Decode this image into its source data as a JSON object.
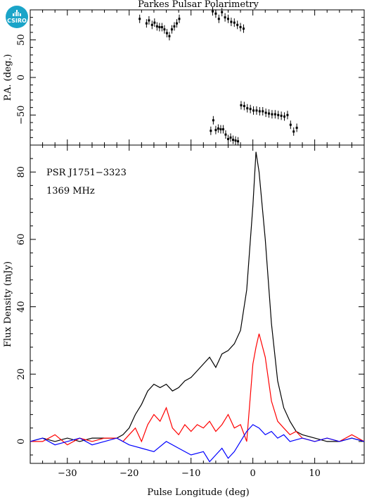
{
  "logo": {
    "text": "CSIRO"
  },
  "chart_data": [
    {
      "type": "scatter",
      "title": "Parkes Pulsar Polarimetry",
      "ylabel": "P.A. (deg.)",
      "xlim": [
        -36,
        18
      ],
      "ylim": [
        -90,
        90
      ],
      "yticks": [
        -50,
        0,
        50
      ],
      "series": [
        {
          "x": [
            -18.3,
            -17.2,
            -16.8,
            -16.3,
            -15.9,
            -15.5,
            -15.1,
            -14.7,
            -14.3,
            -13.9,
            -13.5,
            -13.1,
            -12.7,
            -12.3,
            -11.9,
            -6.5,
            -6.0,
            -5.5,
            -5.0,
            -4.5,
            -4.0,
            -3.5,
            -3.0,
            -2.5,
            -2.0,
            -1.5,
            -6.8,
            -6.4,
            -6.0,
            -5.6,
            -5.2,
            -4.8,
            -4.4,
            -4.0,
            -3.6,
            -3.2,
            -2.8,
            -2.4,
            -1.9,
            -1.4,
            -0.9,
            -0.4,
            0.1,
            0.6,
            1.1,
            1.6,
            2.1,
            2.6,
            3.1,
            3.6,
            4.1,
            4.6,
            5.1,
            5.6,
            6.1,
            6.6,
            7.1
          ],
          "y": [
            78,
            72,
            76,
            70,
            73,
            68,
            67,
            67,
            64,
            59,
            55,
            64,
            68,
            72,
            78,
            88,
            85,
            78,
            87,
            80,
            78,
            74,
            73,
            70,
            67,
            65,
            -71,
            -57,
            -70,
            -68,
            -69,
            -69,
            -76,
            -82,
            -80,
            -83,
            -84,
            -85,
            -37,
            -38,
            -41,
            -42,
            -44,
            -44,
            -45,
            -45,
            -47,
            -48,
            -49,
            -49,
            -50,
            -51,
            -52,
            -50,
            -63,
            -72,
            -67
          ]
        }
      ]
    },
    {
      "type": "line",
      "xlabel": "Pulse Longitude (deg)",
      "ylabel": "Flux Density (mJy)",
      "xlim": [
        -36,
        18
      ],
      "ylim": [
        -6.5,
        88
      ],
      "xticks": [
        -30,
        -20,
        -10,
        0,
        10
      ],
      "yticks": [
        0,
        20,
        40,
        60,
        80
      ],
      "annotations": [
        "PSR J1751−3323",
        "1369 MHz"
      ],
      "series": [
        {
          "color": "#000000",
          "x": [
            -36,
            -34,
            -32,
            -30,
            -28,
            -26,
            -24,
            -22,
            -21,
            -20,
            -19,
            -18,
            -17,
            -16,
            -15,
            -14,
            -13,
            -12,
            -11,
            -10,
            -9,
            -8,
            -7,
            -6,
            -5,
            -4,
            -3,
            -2,
            -1,
            0,
            0.5,
            1,
            2,
            3,
            4,
            5,
            6,
            7,
            8,
            10,
            12,
            14,
            16,
            18
          ],
          "y": [
            0,
            1,
            0,
            1,
            0,
            1,
            1,
            1,
            2,
            4,
            8,
            11,
            15,
            17,
            16,
            17,
            15,
            16,
            18,
            19,
            21,
            23,
            25,
            22,
            26,
            27,
            29,
            33,
            45,
            70,
            86,
            80,
            60,
            35,
            18,
            10,
            6,
            3,
            2,
            1,
            0,
            0,
            1,
            0
          ]
        },
        {
          "color": "#ff0000",
          "x": [
            -36,
            -34,
            -32,
            -30,
            -28,
            -26,
            -24,
            -22,
            -21,
            -20,
            -19,
            -18,
            -17,
            -16,
            -15,
            -14,
            -13,
            -12,
            -11,
            -10,
            -9,
            -8,
            -7,
            -6,
            -5,
            -4,
            -3,
            -2,
            -1,
            0,
            0.5,
            1,
            2,
            3,
            4,
            5,
            6,
            7,
            8,
            10,
            12,
            14,
            16,
            18
          ],
          "y": [
            0,
            0,
            2,
            -1,
            1,
            0,
            1,
            1,
            0,
            2,
            4,
            0,
            5,
            8,
            6,
            10,
            4,
            2,
            5,
            3,
            5,
            4,
            6,
            3,
            5,
            8,
            4,
            5,
            0,
            23,
            28,
            32,
            25,
            12,
            6,
            4,
            2,
            3,
            1,
            0,
            1,
            0,
            2,
            0
          ]
        },
        {
          "color": "#0000ff",
          "x": [
            -36,
            -34,
            -32,
            -30,
            -28,
            -26,
            -24,
            -22,
            -20,
            -18,
            -16,
            -14,
            -12,
            -10,
            -8,
            -7,
            -6,
            -5,
            -4,
            -3,
            -2,
            -1,
            0,
            1,
            2,
            3,
            4,
            5,
            6,
            8,
            10,
            12,
            14,
            16,
            18
          ],
          "y": [
            0,
            1,
            -1,
            0,
            1,
            -1,
            0,
            1,
            -1,
            -2,
            -3,
            0,
            -2,
            -4,
            -3,
            -6,
            -4,
            -2,
            -5,
            -3,
            0,
            3,
            5,
            4,
            2,
            3,
            1,
            2,
            0,
            1,
            0,
            1,
            0,
            1,
            0
          ]
        }
      ]
    }
  ]
}
